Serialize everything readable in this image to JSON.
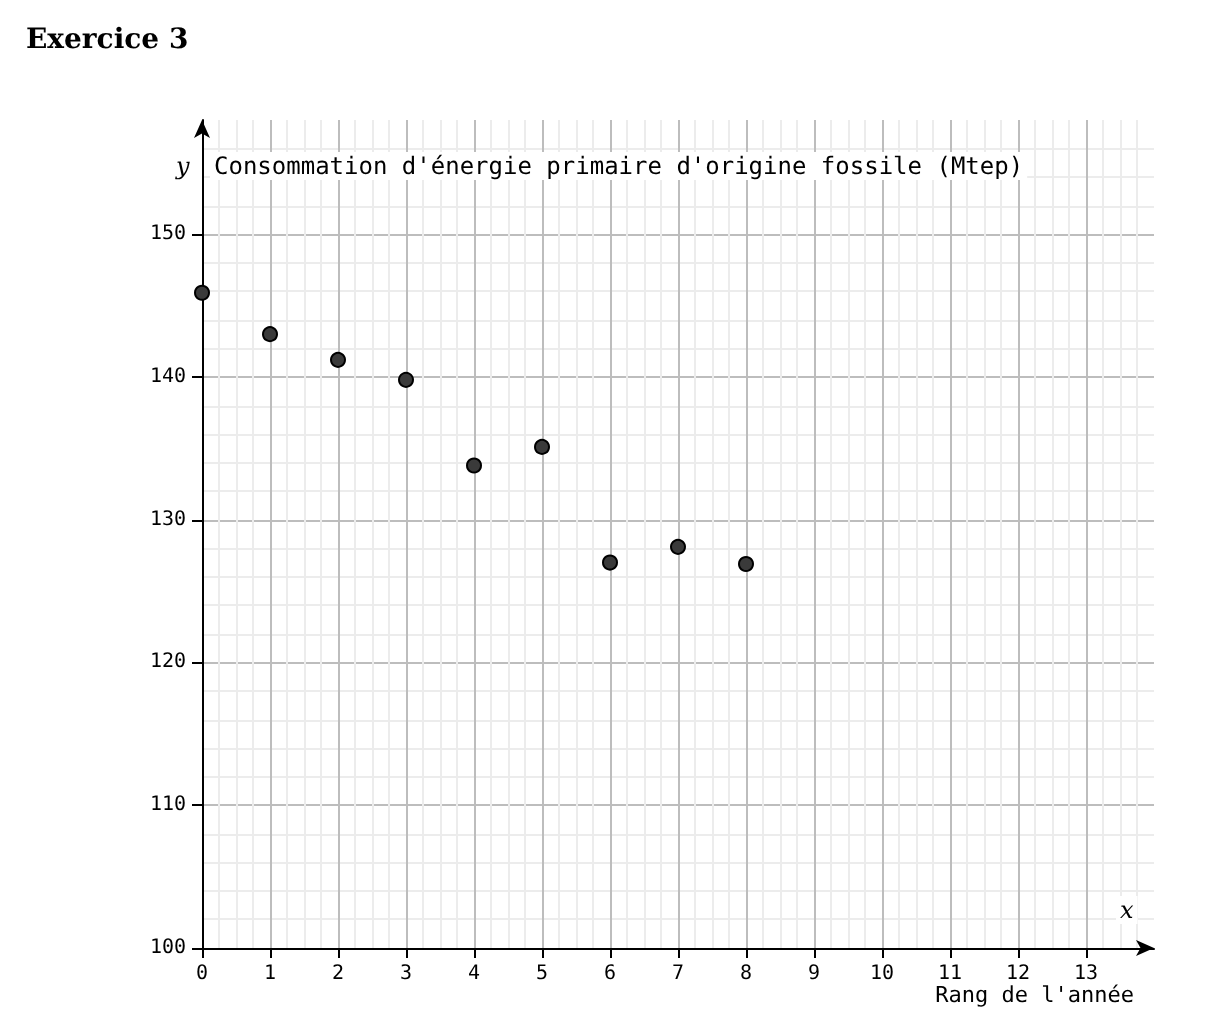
{
  "chart_data": {
    "type": "scatter",
    "title": "Exercice 3",
    "ylabel": "Consommation d'énergie primaire d'origine fossile (Mtep)",
    "xlabel": "Rang de l'année",
    "annotations": [
      "y",
      "x"
    ],
    "x": [
      0,
      1,
      2,
      3,
      4,
      5,
      6,
      7,
      8
    ],
    "series": [
      {
        "color": "#3a3a3a",
        "values": [
          145.9,
          143.0,
          141.2,
          139.8,
          133.8,
          135.1,
          127.0,
          128.1,
          126.9
        ]
      }
    ],
    "xlim": [
      0,
      14
    ],
    "ylim": [
      100,
      158
    ],
    "xticks": [
      0,
      1,
      2,
      3,
      4,
      5,
      6,
      7,
      8,
      9,
      10,
      11,
      12,
      13
    ],
    "yticks": [
      100,
      110,
      120,
      130,
      140,
      150
    ],
    "grid": true,
    "marker": "circle"
  }
}
